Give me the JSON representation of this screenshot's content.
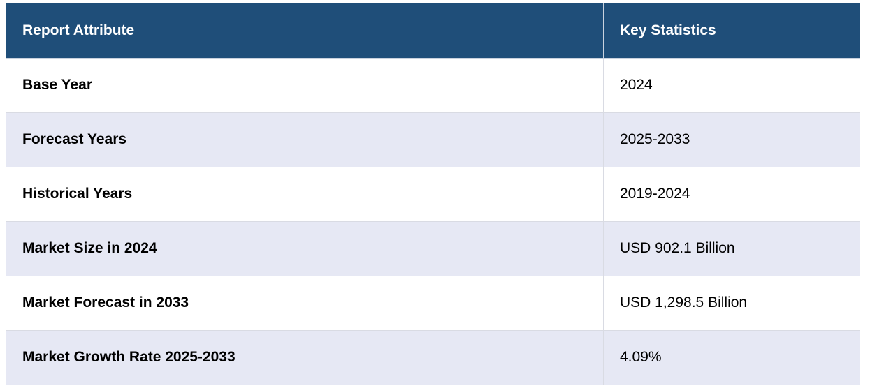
{
  "table": {
    "headers": [
      "Report Attribute",
      "Key Statistics"
    ],
    "rows": [
      {
        "attribute": "Base Year",
        "value": "2024"
      },
      {
        "attribute": "Forecast Years",
        "value": "2025-2033"
      },
      {
        "attribute": "Historical Years",
        "value": "2019-2024"
      },
      {
        "attribute": "Market Size in 2024",
        "value": "USD 902.1 Billion"
      },
      {
        "attribute": "Market Forecast in 2033",
        "value": "USD 1,298.5 Billion"
      },
      {
        "attribute": "Market Growth Rate 2025-2033",
        "value": "4.09%"
      }
    ]
  },
  "colors": {
    "header_bg": "#1f4e79",
    "header_text": "#ffffff",
    "row_alt_bg": "#e6e8f4",
    "row_bg": "#ffffff"
  }
}
